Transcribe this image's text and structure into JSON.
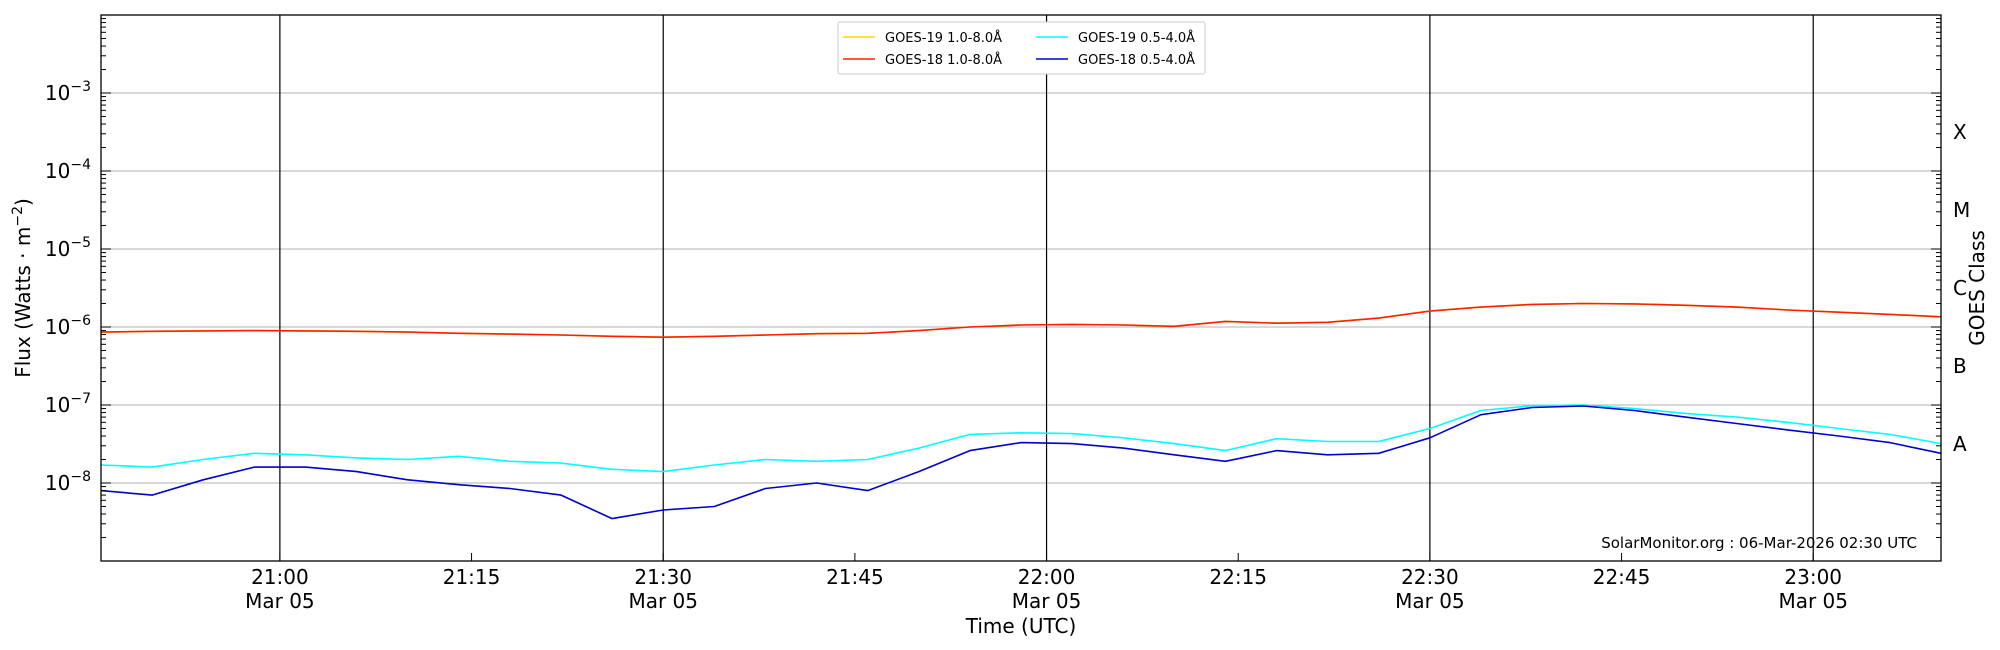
{
  "chart_data": {
    "type": "line",
    "xlabel": "Time (UTC)",
    "ylabel": "Flux (Watts · m",
    "ylabel_sup": "−2",
    "ylabel_close": ")",
    "right_label": "GOES Class",
    "credit": "SolarMonitor.org : 06-Mar-2026 02:30 UTC",
    "y_scale": "log",
    "ylim_exp": [
      -9,
      -2
    ],
    "xlim": [
      "20:46",
      "23:10"
    ],
    "grid": "horizontal",
    "legend_position": "top-center",
    "x_ticks": [
      {
        "time": "21:00",
        "label": "21:00",
        "date": "Mar 05",
        "major": true
      },
      {
        "time": "21:15",
        "label": "21:15",
        "date": "",
        "major": false
      },
      {
        "time": "21:30",
        "label": "21:30",
        "date": "Mar 05",
        "major": true
      },
      {
        "time": "21:45",
        "label": "21:45",
        "date": "",
        "major": false
      },
      {
        "time": "22:00",
        "label": "22:00",
        "date": "Mar 05",
        "major": true
      },
      {
        "time": "22:15",
        "label": "22:15",
        "date": "",
        "major": false
      },
      {
        "time": "22:30",
        "label": "22:30",
        "date": "Mar 05",
        "major": true
      },
      {
        "time": "22:45",
        "label": "22:45",
        "date": "",
        "major": false
      },
      {
        "time": "23:00",
        "label": "23:00",
        "date": "Mar 05",
        "major": true
      }
    ],
    "y_ticks": [
      {
        "exp": -8,
        "base": "10",
        "sup": "−8"
      },
      {
        "exp": -7,
        "base": "10",
        "sup": "−7"
      },
      {
        "exp": -6,
        "base": "10",
        "sup": "−6"
      },
      {
        "exp": -5,
        "base": "10",
        "sup": "−5"
      },
      {
        "exp": -4,
        "base": "10",
        "sup": "−4"
      },
      {
        "exp": -3,
        "base": "10",
        "sup": "−3"
      }
    ],
    "classes": [
      {
        "label": "A",
        "exp": -7.5
      },
      {
        "label": "B",
        "exp": -6.5
      },
      {
        "label": "C",
        "exp": -5.5
      },
      {
        "label": "M",
        "exp": -4.5
      },
      {
        "label": "X",
        "exp": -3.5
      }
    ],
    "x": [
      "20:46",
      "20:50",
      "20:54",
      "20:58",
      "21:02",
      "21:06",
      "21:10",
      "21:14",
      "21:18",
      "21:22",
      "21:26",
      "21:30",
      "21:34",
      "21:38",
      "21:42",
      "21:46",
      "21:50",
      "21:54",
      "21:58",
      "22:02",
      "22:06",
      "22:10",
      "22:14",
      "22:18",
      "22:22",
      "22:26",
      "22:30",
      "22:34",
      "22:38",
      "22:42",
      "22:46",
      "22:50",
      "22:54",
      "22:58",
      "23:02",
      "23:06",
      "23:10"
    ],
    "series": [
      {
        "name": "GOES-19 1.0-8.0Å",
        "color": "#ffd700",
        "values": [
          8.6e-07,
          8.8e-07,
          8.9e-07,
          9e-07,
          8.9e-07,
          8.8e-07,
          8.6e-07,
          8.3e-07,
          8.1e-07,
          7.9e-07,
          7.6e-07,
          7.4e-07,
          7.6e-07,
          7.9e-07,
          8.2e-07,
          8.3e-07,
          9e-07,
          1e-06,
          1.06e-06,
          1.08e-06,
          1.06e-06,
          1.02e-06,
          1.18e-06,
          1.12e-06,
          1.15e-06,
          1.3e-06,
          1.6e-06,
          1.8e-06,
          1.95e-06,
          2e-06,
          1.98e-06,
          1.9e-06,
          1.8e-06,
          1.65e-06,
          1.55e-06,
          1.45e-06,
          1.35e-06
        ]
      },
      {
        "name": "GOES-19 0.5-4.0Å",
        "color": "#00ffff",
        "values": [
          1.7e-08,
          1.6e-08,
          2e-08,
          2.4e-08,
          2.3e-08,
          2.1e-08,
          2e-08,
          2.2e-08,
          1.9e-08,
          1.8e-08,
          1.5e-08,
          1.4e-08,
          1.7e-08,
          2e-08,
          1.9e-08,
          2e-08,
          2.8e-08,
          4.2e-08,
          4.4e-08,
          4.3e-08,
          3.8e-08,
          3.2e-08,
          2.6e-08,
          3.7e-08,
          3.4e-08,
          3.4e-08,
          5e-08,
          8.5e-08,
          9.8e-08,
          1e-07,
          9e-08,
          7.8e-08,
          7e-08,
          6e-08,
          5e-08,
          4.2e-08,
          3.2e-08
        ]
      },
      {
        "name": "GOES-18 1.0-8.0Å",
        "color": "#ff2000",
        "values": [
          8.6e-07,
          8.8e-07,
          8.9e-07,
          9e-07,
          8.9e-07,
          8.8e-07,
          8.6e-07,
          8.3e-07,
          8.1e-07,
          7.9e-07,
          7.6e-07,
          7.4e-07,
          7.6e-07,
          7.9e-07,
          8.2e-07,
          8.3e-07,
          9e-07,
          1e-06,
          1.06e-06,
          1.08e-06,
          1.06e-06,
          1.02e-06,
          1.18e-06,
          1.12e-06,
          1.15e-06,
          1.3e-06,
          1.6e-06,
          1.8e-06,
          1.95e-06,
          2e-06,
          1.98e-06,
          1.9e-06,
          1.8e-06,
          1.65e-06,
          1.55e-06,
          1.45e-06,
          1.35e-06
        ]
      },
      {
        "name": "GOES-18 0.5-4.0Å",
        "color": "#0000cd",
        "values": [
          8e-09,
          7e-09,
          1.1e-08,
          1.6e-08,
          1.6e-08,
          1.4e-08,
          1.1e-08,
          9.5e-09,
          8.5e-09,
          7e-09,
          3.5e-09,
          4.5e-09,
          5e-09,
          8.5e-09,
          1e-08,
          8e-09,
          1.4e-08,
          2.6e-08,
          3.3e-08,
          3.2e-08,
          2.8e-08,
          2.3e-08,
          1.9e-08,
          2.6e-08,
          2.3e-08,
          2.4e-08,
          3.8e-08,
          7.5e-08,
          9.3e-08,
          9.7e-08,
          8.5e-08,
          7e-08,
          5.8e-08,
          4.8e-08,
          4e-08,
          3.3e-08,
          2.4e-08
        ]
      }
    ],
    "legend_order": [
      0,
      2,
      1,
      3
    ]
  }
}
